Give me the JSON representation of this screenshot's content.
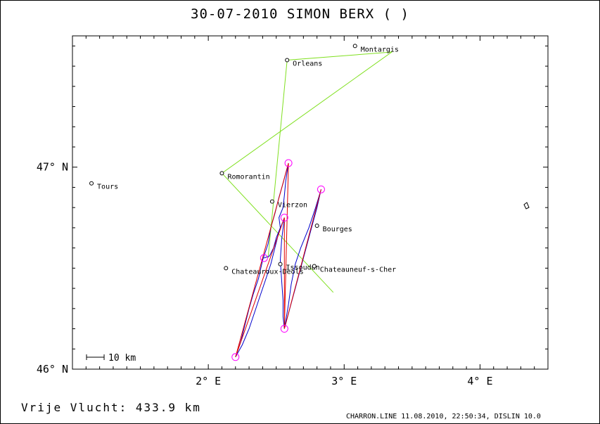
{
  "header": {
    "title": "30-07-2010    SIMON BERX    ( )"
  },
  "footer": {
    "distance": "Vrije Vlucht:  433.9 km",
    "info": "CHARRON.LINE 11.08.2010, 22:50:34, DISLIN 10.0"
  },
  "map": {
    "lon_range": [
      1.0,
      4.5
    ],
    "lat_range": [
      46.0,
      47.65
    ],
    "x_ticks": [
      {
        "value": 2.0,
        "label": "2° E"
      },
      {
        "value": 3.0,
        "label": "3° E"
      },
      {
        "value": 4.0,
        "label": "4° E"
      }
    ],
    "y_ticks": [
      {
        "value": 46.0,
        "label": "46° N"
      },
      {
        "value": 47.0,
        "label": "47° N"
      }
    ],
    "scale_bar": {
      "label": "10 km",
      "km": 10
    },
    "colors": {
      "task": "#80e020",
      "track": "#0000cc",
      "legs": "#e00000",
      "turnpoint": "#ff00ff"
    },
    "cities": [
      {
        "name": "Tours",
        "lon": 1.14,
        "lat": 46.92
      },
      {
        "name": "Romorantin",
        "lon": 2.1,
        "lat": 46.97
      },
      {
        "name": "Vierzon",
        "lon": 2.47,
        "lat": 46.83
      },
      {
        "name": "Bourges",
        "lon": 2.8,
        "lat": 46.71
      },
      {
        "name": "Issoudun",
        "lon": 2.53,
        "lat": 46.52
      },
      {
        "name": "Chateauroux-Deols",
        "lon": 2.13,
        "lat": 46.5
      },
      {
        "name": "Chateauneuf-s-Cher",
        "lon": 2.78,
        "lat": 46.51
      },
      {
        "name": "Orleans",
        "lon": 2.58,
        "lat": 47.53
      },
      {
        "name": "Montargis",
        "lon": 3.08,
        "lat": 47.6
      }
    ],
    "task_route": [
      {
        "lon": 2.44,
        "lat": 46.55
      },
      {
        "lon": 2.58,
        "lat": 47.53
      },
      {
        "lon": 3.35,
        "lat": 47.57
      },
      {
        "lon": 2.1,
        "lat": 46.97
      },
      {
        "lon": 2.92,
        "lat": 46.38
      }
    ],
    "turnpoints": [
      {
        "lon": 2.2,
        "lat": 46.06
      },
      {
        "lon": 2.59,
        "lat": 47.02
      },
      {
        "lon": 2.56,
        "lat": 46.2
      },
      {
        "lon": 2.83,
        "lat": 46.89
      },
      {
        "lon": 2.56,
        "lat": 46.75
      },
      {
        "lon": 2.41,
        "lat": 46.55
      }
    ],
    "legs": [
      {
        "lon": 2.2,
        "lat": 46.06
      },
      {
        "lon": 2.59,
        "lat": 47.02
      },
      {
        "lon": 2.56,
        "lat": 46.2
      },
      {
        "lon": 2.83,
        "lat": 46.89
      },
      {
        "lon": 2.56,
        "lat": 46.2
      },
      {
        "lon": 2.56,
        "lat": 46.75
      },
      {
        "lon": 2.2,
        "lat": 46.06
      }
    ],
    "track": [
      {
        "lon": 2.41,
        "lat": 46.55
      },
      {
        "lon": 2.45,
        "lat": 46.56
      },
      {
        "lon": 2.48,
        "lat": 46.6
      },
      {
        "lon": 2.5,
        "lat": 46.65
      },
      {
        "lon": 2.53,
        "lat": 46.7
      },
      {
        "lon": 2.52,
        "lat": 46.75
      },
      {
        "lon": 2.55,
        "lat": 46.8
      },
      {
        "lon": 2.56,
        "lat": 46.86
      },
      {
        "lon": 2.57,
        "lat": 46.93
      },
      {
        "lon": 2.59,
        "lat": 47.02
      },
      {
        "lon": 2.55,
        "lat": 46.92
      },
      {
        "lon": 2.52,
        "lat": 46.85
      },
      {
        "lon": 2.49,
        "lat": 46.77
      },
      {
        "lon": 2.46,
        "lat": 46.7
      },
      {
        "lon": 2.44,
        "lat": 46.62
      },
      {
        "lon": 2.4,
        "lat": 46.54
      },
      {
        "lon": 2.37,
        "lat": 46.45
      },
      {
        "lon": 2.33,
        "lat": 46.37
      },
      {
        "lon": 2.3,
        "lat": 46.3
      },
      {
        "lon": 2.27,
        "lat": 46.22
      },
      {
        "lon": 2.24,
        "lat": 46.14
      },
      {
        "lon": 2.2,
        "lat": 46.06
      },
      {
        "lon": 2.25,
        "lat": 46.12
      },
      {
        "lon": 2.3,
        "lat": 46.2
      },
      {
        "lon": 2.34,
        "lat": 46.28
      },
      {
        "lon": 2.38,
        "lat": 46.36
      },
      {
        "lon": 2.42,
        "lat": 46.44
      },
      {
        "lon": 2.46,
        "lat": 46.52
      },
      {
        "lon": 2.49,
        "lat": 46.6
      },
      {
        "lon": 2.52,
        "lat": 46.68
      },
      {
        "lon": 2.56,
        "lat": 46.75
      },
      {
        "lon": 2.54,
        "lat": 46.64
      },
      {
        "lon": 2.53,
        "lat": 46.54
      },
      {
        "lon": 2.54,
        "lat": 46.44
      },
      {
        "lon": 2.55,
        "lat": 46.34
      },
      {
        "lon": 2.55,
        "lat": 46.26
      },
      {
        "lon": 2.56,
        "lat": 46.2
      },
      {
        "lon": 2.6,
        "lat": 46.3
      },
      {
        "lon": 2.64,
        "lat": 46.4
      },
      {
        "lon": 2.68,
        "lat": 46.5
      },
      {
        "lon": 2.72,
        "lat": 46.6
      },
      {
        "lon": 2.76,
        "lat": 46.7
      },
      {
        "lon": 2.8,
        "lat": 46.8
      },
      {
        "lon": 2.83,
        "lat": 46.89
      },
      {
        "lon": 2.79,
        "lat": 46.8
      },
      {
        "lon": 2.74,
        "lat": 46.7
      },
      {
        "lon": 2.68,
        "lat": 46.6
      },
      {
        "lon": 2.64,
        "lat": 46.52
      },
      {
        "lon": 2.61,
        "lat": 46.42
      },
      {
        "lon": 2.59,
        "lat": 46.32
      },
      {
        "lon": 2.57,
        "lat": 46.24
      },
      {
        "lon": 2.56,
        "lat": 46.2
      }
    ]
  }
}
